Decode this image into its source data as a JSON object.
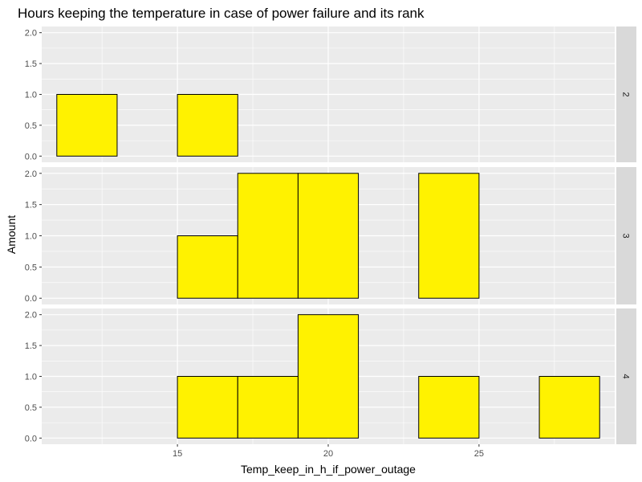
{
  "chart_data": {
    "type": "bar",
    "title": "Hours keeping the temperature in case of power failure and its rank",
    "xlabel": "Temp_keep_in_h_if_power_outage",
    "ylabel": "Amount",
    "xlim": [
      10.5,
      29.5
    ],
    "ylim": [
      -0.1,
      2.1
    ],
    "x_ticks": [
      15,
      20,
      25
    ],
    "y_ticks": [
      0.0,
      0.5,
      1.0,
      1.5,
      2.0
    ],
    "y_tick_labels": [
      "0.0",
      "0.5",
      "1.0",
      "1.5",
      "2.0"
    ],
    "bin_edges": [
      11,
      13,
      15,
      17,
      19,
      21,
      23,
      25,
      27,
      29
    ],
    "bar_fill": "#FFF200",
    "bar_stroke": "#000000",
    "panel_background": "#EBEBEB",
    "strip_background": "#D9D9D9",
    "facets": [
      {
        "label": "2",
        "counts": [
          1,
          0,
          1,
          0,
          0,
          0,
          0,
          0,
          0
        ]
      },
      {
        "label": "3",
        "counts": [
          0,
          0,
          1,
          2,
          2,
          0,
          2,
          0,
          0
        ]
      },
      {
        "label": "4",
        "counts": [
          0,
          0,
          1,
          1,
          2,
          0,
          1,
          0,
          1
        ]
      }
    ]
  }
}
